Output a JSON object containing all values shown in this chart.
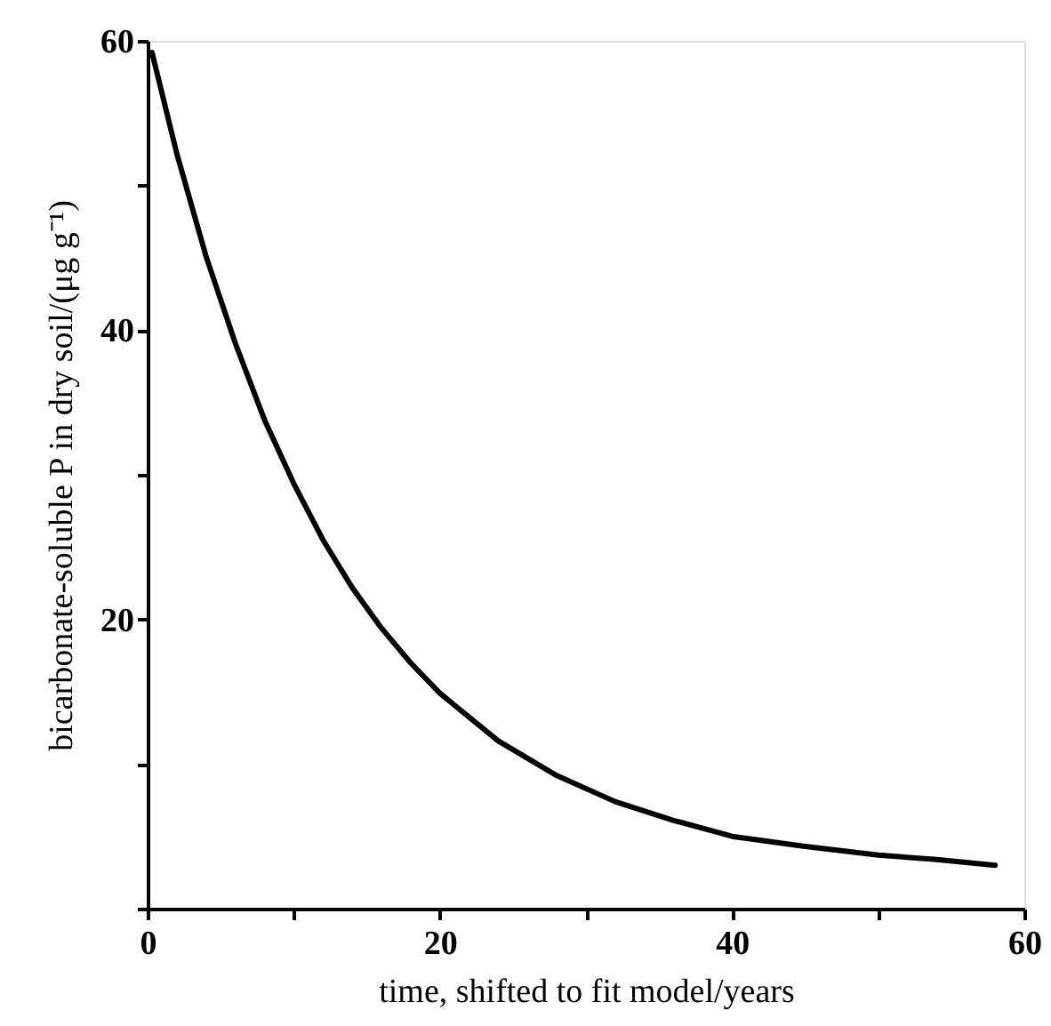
{
  "chart_data": {
    "type": "line",
    "xlabel": "time, shifted to fit model/years",
    "ylabel": "bicarbonate-soluble P in dry soil/(μg g⁻¹)",
    "x": [
      0.3,
      2,
      4,
      6,
      8,
      10,
      12,
      14,
      16,
      18,
      20,
      24,
      28,
      32,
      36,
      40,
      45,
      50,
      54,
      58
    ],
    "series": [
      {
        "color": "#000000",
        "values": [
          59.2,
          52.2,
          45.1,
          39.1,
          33.8,
          29.4,
          25.5,
          22.2,
          19.4,
          17.0,
          14.9,
          11.6,
          9.2,
          7.4,
          6.1,
          5.0,
          4.3,
          3.7,
          3.4,
          3.0
        ]
      }
    ],
    "xlim": [
      0,
      60
    ],
    "ylim": [
      0,
      60
    ],
    "xticks": [
      0,
      {
        "value": 10,
        "label": null
      },
      20,
      {
        "value": 30,
        "label": null
      },
      40,
      {
        "value": 50,
        "label": null
      },
      60
    ],
    "yticks": [
      {
        "value": 0,
        "label": null
      },
      {
        "value": 10,
        "label": null
      },
      20,
      {
        "value": 30,
        "label": null
      },
      40,
      {
        "value": 50,
        "label": null
      },
      60
    ],
    "grid": false,
    "marker": "none",
    "line_style": "solid"
  }
}
